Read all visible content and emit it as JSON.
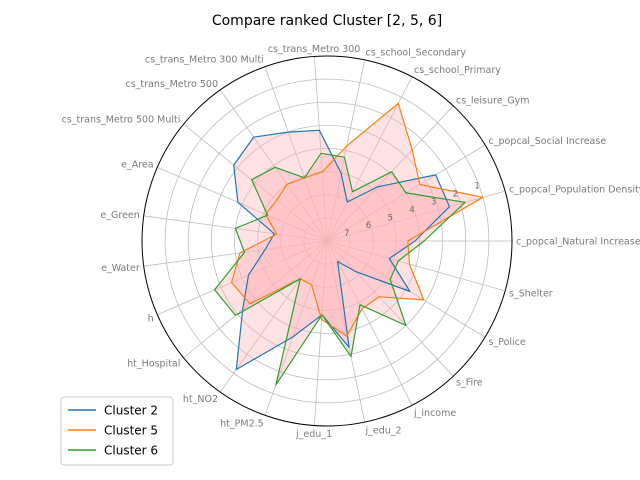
{
  "chart_data": {
    "type": "radar",
    "title": "Compare ranked Cluster [2, 5, 6]",
    "axes": [
      "c_popcal_Natural Increase",
      "c_popcal_Population Density",
      "c_popcal_Social Increase",
      "cs_leisure_Gym",
      "cs_school_Primary",
      "cs_school_Secondary",
      "cs_trans_Metro 300",
      "cs_trans_Metro 300 Multi",
      "cs_trans_Metro 500",
      "cs_trans_Metro 500 Multi",
      "e_Area",
      "e_Green",
      "e_Water",
      "h",
      "ht_Hospital",
      "ht_NO2",
      "ht_PM2.5",
      "j_edu_1",
      "j_edu_2",
      "j_income",
      "s_Fire",
      "s_Police",
      "s_Shelter"
    ],
    "radial_ticks": [
      1,
      2,
      3,
      4,
      5,
      6,
      7
    ],
    "radial_tick_labels": [
      "1",
      "2",
      "3",
      "4",
      "5",
      "6",
      "7"
    ],
    "series": [
      {
        "name": "Cluster 2",
        "color": "#1f77b4",
        "values": [
          4.2,
          2.5,
          2.5,
          4.8,
          6.1,
          5.0,
          3.2,
          3.0,
          2.5,
          2.8,
          3.8,
          5.7,
          5.3,
          4.3,
          3.3,
          1.2,
          3.6,
          4.8,
          3.3,
          7.0,
          6.2,
          3.8,
          5.2
        ]
      },
      {
        "name": "Cluster 5",
        "color": "#ff7f0e",
        "values": [
          4.5,
          1.0,
          3.3,
          2.6,
          1.3,
          3.8,
          5.0,
          5.1,
          5.0,
          5.2,
          5.1,
          5.8,
          4.2,
          3.5,
          3.7,
          6.0,
          6.0,
          4.6,
          3.8,
          4.7,
          4.7,
          3.1,
          4.3
        ]
      },
      {
        "name": "Cluster 6",
        "color": "#2ca02c",
        "values": [
          3.8,
          1.8,
          4.0,
          3.9,
          5.6,
          4.3,
          4.2,
          5.1,
          4.1,
          3.8,
          5.2,
          4.0,
          4.4,
          2.7,
          2.9,
          6.0,
          1.4,
          4.8,
          2.9,
          4.9,
          3.0,
          4.8,
          4.8
        ]
      }
    ],
    "fill_color": "#ffb3b8",
    "legend": "lower-left"
  }
}
